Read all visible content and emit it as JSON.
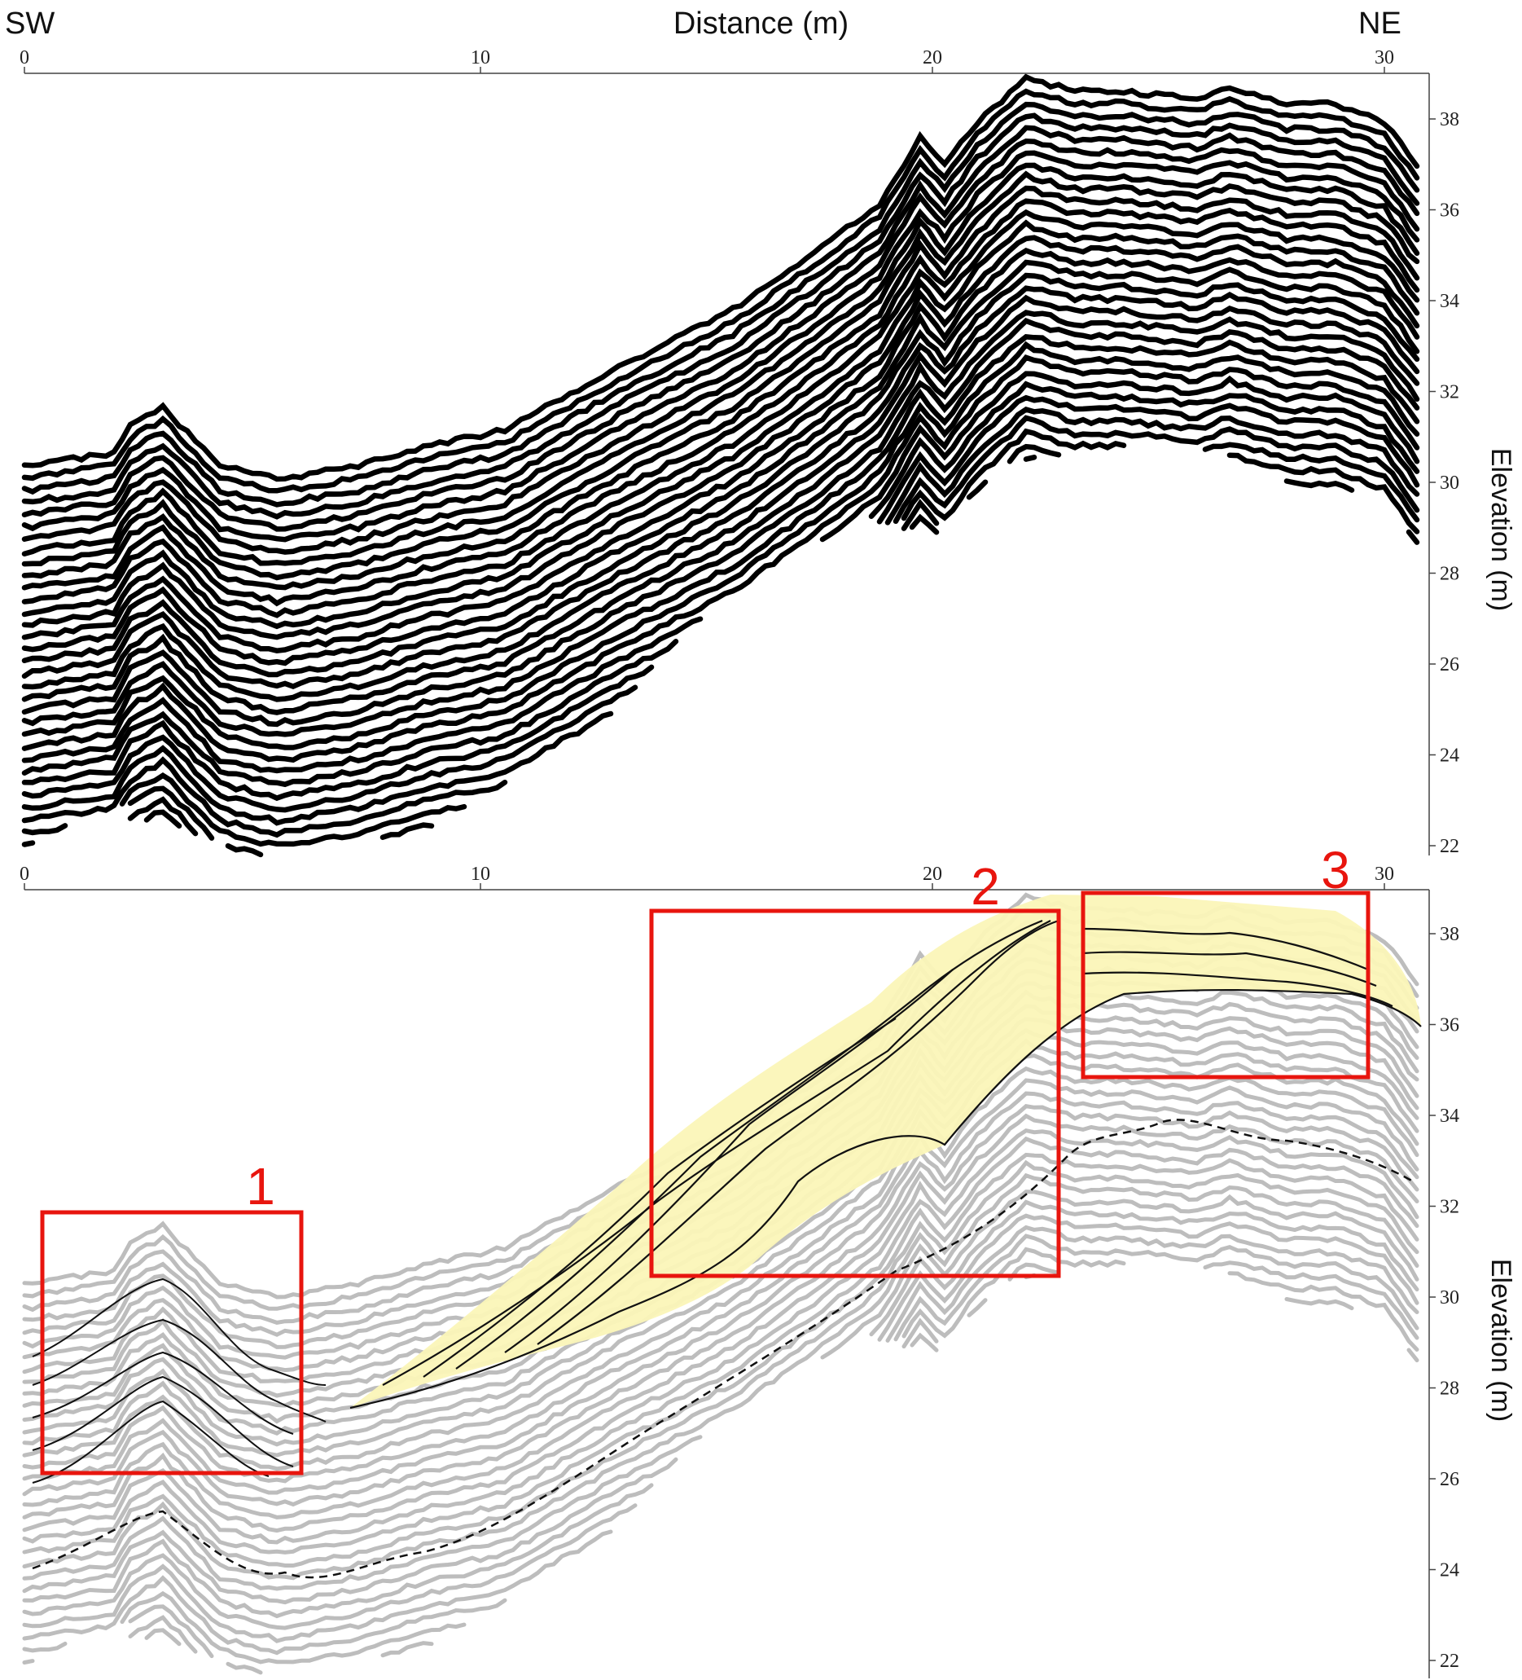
{
  "header": {
    "left_label": "SW",
    "title": "Distance (m)",
    "right_label": "NE"
  },
  "axes": {
    "x_ticks": [
      "0",
      "10",
      "20",
      "30"
    ],
    "y_ticks": [
      "38",
      "36",
      "34",
      "32",
      "30",
      "28",
      "26",
      "24",
      "22"
    ],
    "y_label": "Elevation (m)"
  },
  "panels": [
    {
      "name": "raw-gpr-profile"
    },
    {
      "name": "interpreted-gpr-profile"
    }
  ],
  "boxes": [
    {
      "label": "1"
    },
    {
      "label": "2"
    },
    {
      "label": "3"
    }
  ],
  "colors": {
    "box": "#e8150e",
    "fill": "#fbf6b8",
    "reflector_raw": "#000000",
    "reflector_gray": "#bdbdbd",
    "interp_line": "#111111"
  }
}
